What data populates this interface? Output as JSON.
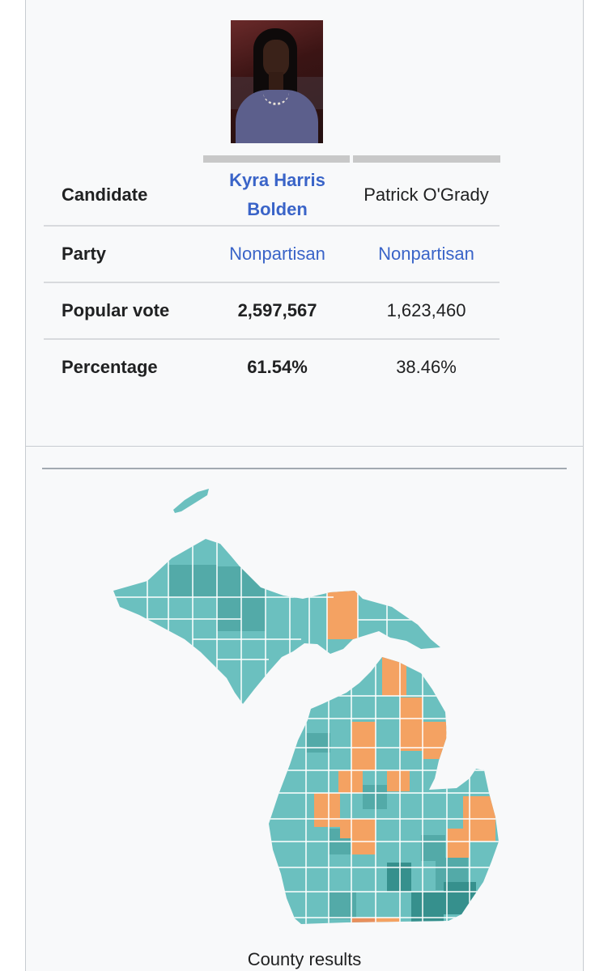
{
  "candidate_photo": {
    "alt_icon": "candidate-portrait"
  },
  "table": {
    "rows": [
      {
        "label": "Candidate",
        "col1": "Kyra Harris Bolden",
        "col2": "Patrick O'Grady"
      },
      {
        "label": "Party",
        "col1": "Nonpartisan",
        "col2": "Nonpartisan"
      },
      {
        "label": "Popular vote",
        "col1": "2,597,567",
        "col2": "1,623,460"
      },
      {
        "label": "Percentage",
        "col1": "61.54%",
        "col2": "38.46%"
      }
    ]
  },
  "map": {
    "caption": "County results",
    "colors": {
      "bolden_light": "#6bc0bf",
      "bolden_mid": "#53aaa8",
      "bolden_dark": "#36908d",
      "ogrady": "#f4a262",
      "ogrady_dark": "#e88f5c",
      "border": "#ffffff"
    }
  },
  "colors": {
    "link": "#3a64c8",
    "column_bar": "#c8c8c8"
  }
}
